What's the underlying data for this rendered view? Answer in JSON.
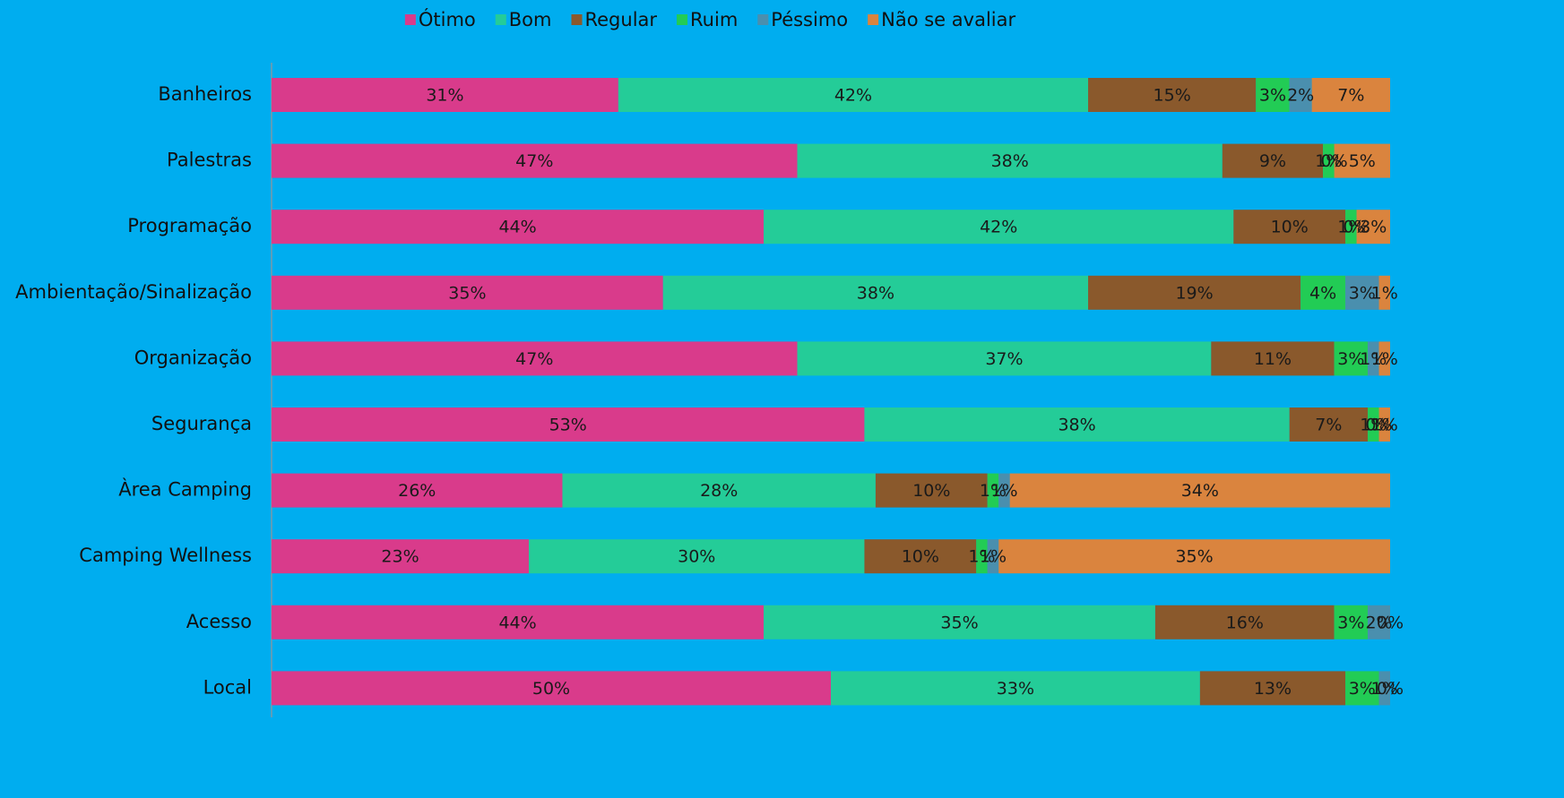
{
  "chart_data": {
    "type": "stacked_bar_horizontal",
    "categories": [
      "Banheiros",
      "Palestras",
      "Programação",
      "Ambientação/Sinalização",
      "Organização",
      "Segurança",
      "Àrea Camping",
      "Camping Wellness",
      "Acesso",
      "Local"
    ],
    "xlim": [
      0,
      100
    ],
    "legend": "top",
    "series": [
      {
        "name": "Ótimo",
        "color": "#d93b8b",
        "values": [
          31,
          47,
          44,
          35,
          47,
          53,
          26,
          23,
          44,
          50
        ],
        "value_labels": [
          "31%",
          "47%",
          "44%",
          "35%",
          "47%",
          "53%",
          "26%",
          "23%",
          "44%",
          "50%"
        ]
      },
      {
        "name": "Bom",
        "color": "#24cc98",
        "values": [
          42,
          38,
          42,
          38,
          37,
          38,
          28,
          30,
          35,
          33
        ],
        "value_labels": [
          "42%",
          "38%",
          "42%",
          "38%",
          "37%",
          "38%",
          "28%",
          "30%",
          "35%",
          "33%"
        ]
      },
      {
        "name": "Regular",
        "color": "#8a592c",
        "values": [
          15,
          9,
          10,
          19,
          11,
          7,
          10,
          10,
          16,
          13
        ],
        "value_labels": [
          "15%",
          "9%",
          "10%",
          "19%",
          "11%",
          "7%",
          "10%",
          "10%",
          "16%",
          "13%"
        ]
      },
      {
        "name": "Ruim",
        "color": "#22cc55",
        "values": [
          3,
          1,
          1,
          4,
          3,
          1,
          1,
          1,
          3,
          3
        ],
        "value_labels": [
          "3%",
          "1%",
          "1%",
          "4%",
          "3%",
          "1%",
          "1%",
          "1%",
          "3%",
          "3%"
        ]
      },
      {
        "name": "Péssimo",
        "color": "#4a8fae",
        "values": [
          2,
          0,
          0,
          3,
          1,
          0,
          1,
          1,
          2,
          1
        ],
        "value_labels": [
          "2%",
          "0%",
          "0%",
          "3%",
          "1%",
          "0%",
          "1%",
          "1%",
          "2%",
          "1%"
        ]
      },
      {
        "name": "Não se avaliar",
        "color": "#da843e",
        "values": [
          7,
          5,
          3,
          1,
          1,
          1,
          34,
          35,
          0,
          0
        ],
        "value_labels": [
          "7%",
          "5%",
          "3%",
          "1%",
          "1%",
          "1%",
          "34%",
          "35%",
          "0%",
          "0%"
        ]
      }
    ]
  }
}
